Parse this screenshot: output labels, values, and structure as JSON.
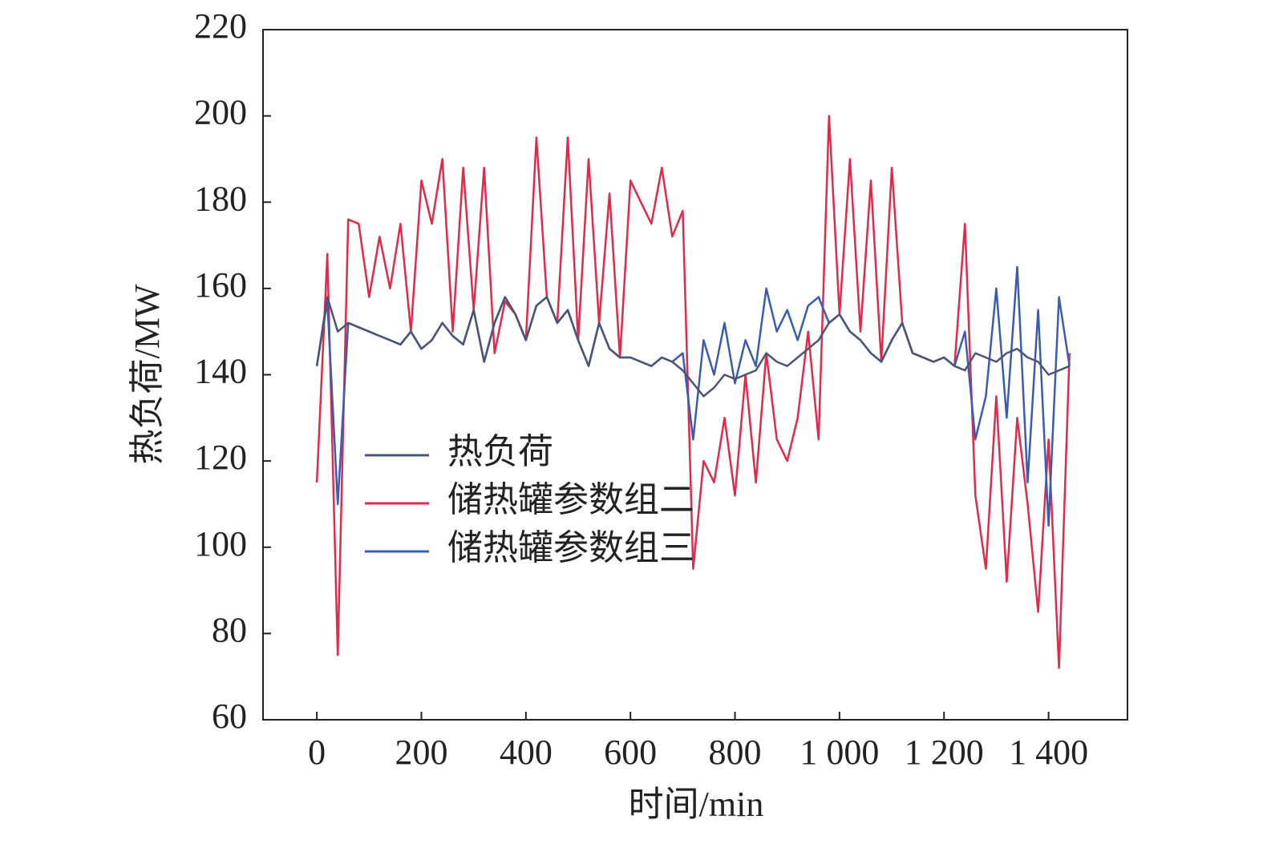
{
  "chart_data": {
    "type": "line",
    "xlabel": "时间/min",
    "ylabel": "热负荷/MW",
    "xlim": [
      -103,
      1551
    ],
    "ylim": [
      60,
      220
    ],
    "xticks": [
      0,
      200,
      400,
      600,
      800,
      {
        "value": 1000,
        "label": "1 000"
      },
      {
        "value": 1200,
        "label": "1 200"
      },
      {
        "value": 1400,
        "label": "1 400"
      }
    ],
    "yticks": [
      60,
      80,
      100,
      120,
      140,
      160,
      180,
      200,
      220
    ],
    "x": [
      0,
      20,
      40,
      60,
      80,
      100,
      120,
      140,
      160,
      180,
      200,
      220,
      240,
      260,
      280,
      300,
      320,
      340,
      360,
      380,
      400,
      420,
      440,
      460,
      480,
      500,
      520,
      540,
      560,
      580,
      600,
      620,
      640,
      660,
      680,
      700,
      720,
      740,
      760,
      780,
      800,
      820,
      840,
      860,
      880,
      900,
      920,
      940,
      960,
      980,
      1000,
      1020,
      1040,
      1060,
      1080,
      1100,
      1120,
      1140,
      1160,
      1180,
      1200,
      1220,
      1240,
      1260,
      1280,
      1300,
      1320,
      1340,
      1360,
      1380,
      1400,
      1420,
      1440
    ],
    "series": [
      {
        "name": "热负荷",
        "color": "#4a5575",
        "values": [
          142,
          158,
          150,
          152,
          151,
          150,
          149,
          148,
          147,
          150,
          146,
          148,
          152,
          149,
          147,
          155,
          143,
          152,
          158,
          154,
          148,
          156,
          158,
          152,
          155,
          148,
          142,
          152,
          146,
          144,
          144,
          143,
          142,
          144,
          143,
          141,
          138,
          135,
          137,
          140,
          139,
          140,
          141,
          145,
          143,
          142,
          144,
          146,
          148,
          152,
          154,
          150,
          148,
          145,
          143,
          148,
          152,
          145,
          144,
          143,
          144,
          142,
          141,
          145,
          144,
          143,
          145,
          146,
          144,
          143,
          140,
          141,
          142
        ]
      },
      {
        "name": "储热罐参数组二",
        "color": "#e2294a",
        "values": [
          115,
          168,
          75,
          176,
          175,
          158,
          172,
          160,
          175,
          150,
          185,
          175,
          190,
          150,
          188,
          155,
          188,
          145,
          157,
          154,
          148,
          195,
          158,
          152,
          195,
          148,
          190,
          152,
          182,
          144,
          185,
          180,
          175,
          188,
          172,
          178,
          95,
          120,
          115,
          130,
          112,
          140,
          115,
          145,
          125,
          120,
          130,
          150,
          125,
          200,
          154,
          190,
          150,
          185,
          143,
          188,
          152,
          145,
          144,
          143,
          144,
          142,
          175,
          112,
          95,
          135,
          92,
          130,
          110,
          85,
          125,
          72,
          145
        ]
      },
      {
        "name": "储热罐参数组三",
        "color": "#3a5cb0",
        "values": [
          142,
          157,
          110,
          152,
          151,
          150,
          149,
          148,
          147,
          150,
          146,
          148,
          152,
          149,
          147,
          155,
          143,
          152,
          158,
          154,
          148,
          156,
          158,
          152,
          155,
          148,
          142,
          152,
          146,
          144,
          144,
          143,
          142,
          144,
          143,
          145,
          125,
          148,
          140,
          152,
          138,
          148,
          142,
          160,
          150,
          155,
          148,
          156,
          158,
          152,
          154,
          150,
          148,
          145,
          143,
          148,
          152,
          145,
          144,
          143,
          144,
          142,
          150,
          125,
          135,
          160,
          130,
          165,
          115,
          155,
          105,
          158,
          142
        ]
      }
    ]
  }
}
